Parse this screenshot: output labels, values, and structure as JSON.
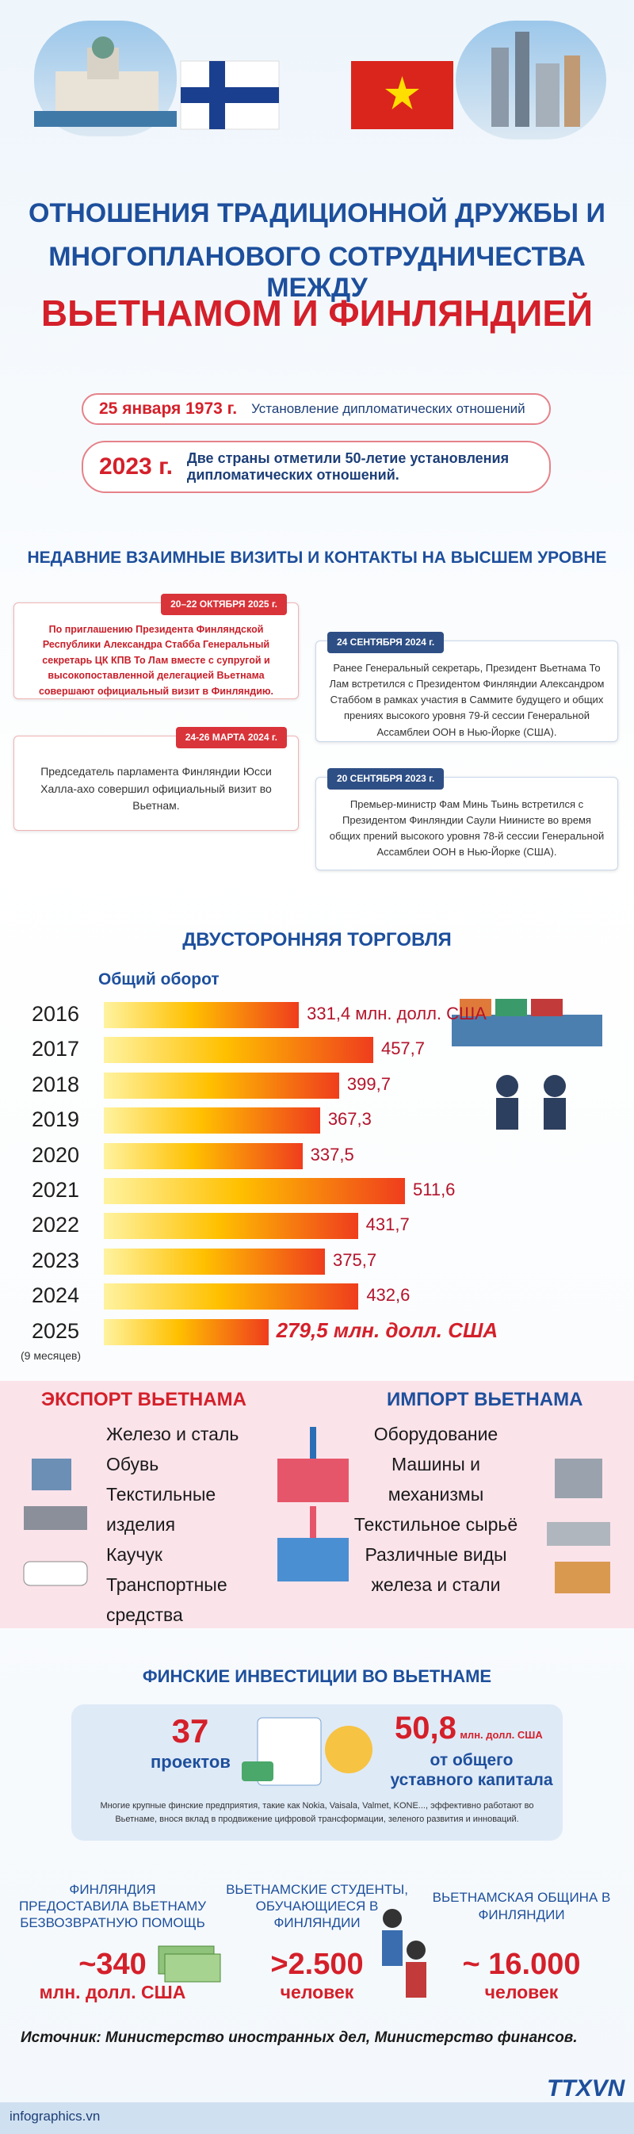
{
  "header": {
    "title_line1": "ОТНОШЕНИЯ ТРАДИЦИОННОЙ ДРУЖБЫ И",
    "title_line2": "МНОГОПЛАНОВОГО  СОТРУДНИЧЕСТВА МЕЖДУ",
    "title_line3": "ВЬЕТНАМОМ И ФИНЛЯНДИЕЙ"
  },
  "milestones": [
    {
      "date": "25 января 1973 г.",
      "text": "Установление дипломатических отношений"
    },
    {
      "date": "2023 г.",
      "text": "Две страны отметили 50-летие установления дипломатических отношений."
    }
  ],
  "visits": {
    "title": "НЕДАВНИЕ ВЗАИМНЫЕ ВИЗИТЫ И КОНТАКТЫ НА ВЫСШЕМ УРОВНЕ",
    "items": [
      {
        "date": "20–22 ОКТЯБРЯ 2025 г.",
        "text": "По приглашению Президента Финляндской Республики Александра Стабба Генеральный секретарь ЦК КПВ То Лам вместе с супругой и высокопоставленной делегацией Вьетнама совершают официальный визит в Финляндию."
      },
      {
        "date": "24 СЕНТЯБРЯ 2024 г.",
        "text": "Ранее Генеральный секретарь, Президент Вьетнама То Лам встретился с Президентом Финляндии Александром Стаббом в рамках участия в Саммите будущего и общих прениях высокого уровня 79-й сессии Генеральной Ассамблеи ООН в Нью-Йорке (США)."
      },
      {
        "date": "24-26 МАРТА 2024 г.",
        "text": "Председатель парламента Финляндии Юсси Халла-ахо совершил официальный визит во Вьетнам."
      },
      {
        "date": "20 СЕНТЯБРЯ 2023 г.",
        "text": "Премьер-министр Фам Минь Тьинь встретился с Президентом Финляндии Саули Ниинисте во время общих прений высокого уровня 78-й сессии Генеральной Ассамблеи ООН в Нью-Йорке (США)."
      }
    ]
  },
  "chart_data": {
    "type": "bar",
    "title": "ДВУСТОРОННЯЯ ТОРГОВЛЯ",
    "subtitle": "Общий оборот",
    "categories": [
      "2016",
      "2017",
      "2018",
      "2019",
      "2020",
      "2021",
      "2022",
      "2023",
      "2024",
      "2025"
    ],
    "values": [
      331.4,
      457.7,
      399.7,
      367.3,
      337.5,
      511.6,
      431.7,
      375.7,
      432.6,
      279.5
    ],
    "value_labels": [
      "331,4 млн. долл. США",
      "457,7",
      "399,7",
      "367,3",
      "337,5",
      "511,6",
      "431,7",
      "375,7",
      "432,6",
      "279,5 млн. долл. США"
    ],
    "note": "(9 месяцев)"
  },
  "export": {
    "title": "ЭКСПОРТ ВЬЕТНАМА",
    "items": [
      "Железо и сталь",
      "Обувь",
      "Текстильные изделия",
      "Каучук",
      "Транспортные средства"
    ]
  },
  "import": {
    "title": "ИМПОРТ ВЬЕТНАМА",
    "items": [
      "Оборудование",
      "Машины и механизмы",
      "Текстильное сырьё",
      "Различные виды железа и стали"
    ]
  },
  "investment": {
    "title": "ФИНСКИЕ ИНВЕСТИЦИИ ВО ВЬЕТНАМЕ",
    "projects": "37",
    "projects_label": "проектов",
    "capital": "50,8",
    "capital_unit": "млн. долл. США",
    "capital_label": "от общего уставного капитала",
    "note": "Многие крупные финские предприятия, такие как Nokia, Vaisala, Valmet, KONE..., эффективно работают во Вьетнаме, внося вклад в продвижение цифровой трансформации, зеленого развития и инноваций."
  },
  "stats": [
    {
      "title": "ФИНЛЯНДИЯ ПРЕДОСТАВИЛА ВЬЕТНАМУ БЕЗВОЗВРАТНУЮ ПОМОЩЬ",
      "value": "~340",
      "unit": "млн. долл. США"
    },
    {
      "title": "ВЬЕТНАМСКИЕ СТУДЕНТЫ, ОБУЧАЮЩИЕСЯ В ФИНЛЯНДИИ",
      "value": ">2.500",
      "unit": "человек"
    },
    {
      "title": "ВЬЕТНАМСКАЯ ОБЩИНА В ФИНЛЯНДИИ",
      "value": "~ 16.000",
      "unit": "человек"
    }
  ],
  "source": "Источник: Министерство иностранных дел, Министерство финансов.",
  "footer": {
    "site": "infographics.vn",
    "logo": "TTXVN"
  }
}
